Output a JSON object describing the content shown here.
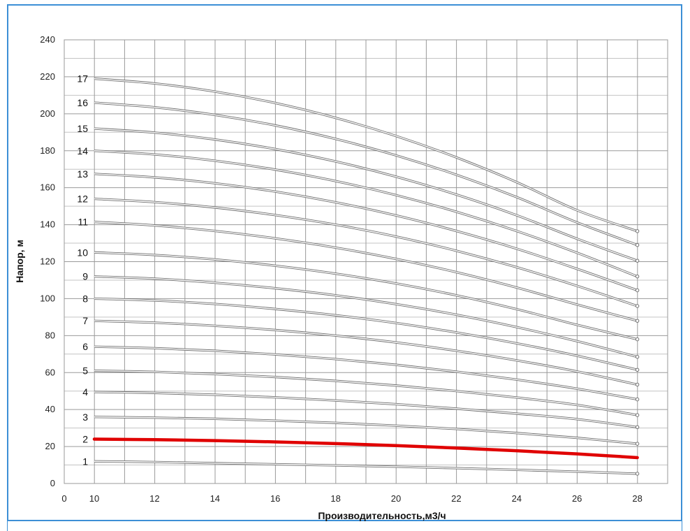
{
  "chart_data": {
    "type": "line",
    "title": "",
    "xlabel": "Производительность,м3/ч",
    "ylabel": "Напор, м",
    "xlim": [
      0,
      29
    ],
    "ylim": [
      0,
      240
    ],
    "x_ticks": [
      "0",
      "10",
      "12",
      "14",
      "16",
      "18",
      "20",
      "22",
      "24",
      "26",
      "28"
    ],
    "y_ticks": [
      "0",
      "20",
      "40",
      "60",
      "80",
      "100",
      "120",
      "140",
      "160",
      "180",
      "200",
      "220",
      "240"
    ],
    "grid": true,
    "legend": "none",
    "x": [
      10,
      12,
      14,
      16,
      18,
      20,
      22,
      24,
      26,
      28
    ],
    "series": [
      {
        "name": "1",
        "color": "#b0b0b0",
        "values": [
          12.0,
          11.6,
          11.0,
          10.4,
          9.8,
          9.1,
          8.3,
          7.4,
          6.4,
          5.3
        ]
      },
      {
        "name": "2",
        "color": "#e00000",
        "values": [
          24.0,
          23.7,
          23.2,
          22.5,
          21.6,
          20.5,
          19.2,
          17.7,
          16.0,
          14.0
        ]
      },
      {
        "name": "3",
        "color": "#b0b0b0",
        "values": [
          36.0,
          35.6,
          35.0,
          34.0,
          32.8,
          31.3,
          29.5,
          27.3,
          24.7,
          21.5
        ]
      },
      {
        "name": "4",
        "color": "#b0b0b0",
        "values": [
          49.5,
          49.0,
          48.0,
          46.6,
          44.9,
          42.9,
          40.5,
          37.8,
          34.8,
          30.5
        ]
      },
      {
        "name": "5",
        "color": "#b0b0b0",
        "values": [
          61.0,
          60.4,
          59.2,
          57.6,
          55.5,
          53.0,
          50.0,
          46.5,
          42.5,
          37.0
        ]
      },
      {
        "name": "6",
        "color": "#b0b0b0",
        "values": [
          74.0,
          73.2,
          71.8,
          69.8,
          67.3,
          64.2,
          60.5,
          56.2,
          51.3,
          45.5
        ]
      },
      {
        "name": "7",
        "color": "#b0b0b0",
        "values": [
          88.0,
          87.0,
          85.3,
          83.0,
          80.0,
          76.3,
          71.8,
          66.6,
          60.6,
          53.5
        ]
      },
      {
        "name": "8",
        "color": "#b0b0b0",
        "values": [
          100.0,
          99.0,
          97.1,
          94.4,
          91.0,
          86.8,
          81.7,
          75.8,
          69.1,
          61.5
        ]
      },
      {
        "name": "9",
        "color": "#b0b0b0",
        "values": [
          112.0,
          110.8,
          108.6,
          105.6,
          101.8,
          97.0,
          91.3,
          84.6,
          77.0,
          68.5
        ]
      },
      {
        "name": "10",
        "color": "#b0b0b0",
        "values": [
          125.0,
          123.6,
          121.2,
          117.8,
          113.5,
          108.2,
          101.8,
          94.3,
          85.8,
          78.0
        ]
      },
      {
        "name": "11",
        "color": "#b0b0b0",
        "values": [
          141.5,
          139.6,
          136.6,
          132.6,
          127.6,
          121.5,
          114.3,
          106.0,
          96.8,
          88.0
        ]
      },
      {
        "name": "12",
        "color": "#b0b0b0",
        "values": [
          154.0,
          152.2,
          149.3,
          145.2,
          140.0,
          133.6,
          125.9,
          117.0,
          106.9,
          96.0
        ]
      },
      {
        "name": "13",
        "color": "#b0b0b0",
        "values": [
          167.5,
          165.6,
          162.4,
          157.9,
          152.1,
          145.0,
          136.6,
          127.0,
          116.1,
          104.5
        ]
      },
      {
        "name": "14",
        "color": "#b0b0b0",
        "values": [
          180.0,
          178.0,
          174.6,
          169.8,
          163.6,
          156.0,
          147.0,
          136.6,
          124.8,
          112.0
        ]
      },
      {
        "name": "15",
        "color": "#b0b0b0",
        "values": [
          192.0,
          189.8,
          186.1,
          180.9,
          174.2,
          166.0,
          156.3,
          145.1,
          132.4,
          120.5
        ]
      },
      {
        "name": "16",
        "color": "#b0b0b0",
        "values": [
          206.0,
          203.5,
          199.4,
          193.7,
          186.4,
          177.5,
          167.0,
          154.9,
          141.2,
          129.0
        ]
      },
      {
        "name": "17",
        "color": "#b0b0b0",
        "values": [
          219.0,
          216.4,
          212.0,
          205.8,
          197.8,
          188.0,
          176.4,
          163.0,
          147.8,
          136.5
        ]
      }
    ]
  }
}
